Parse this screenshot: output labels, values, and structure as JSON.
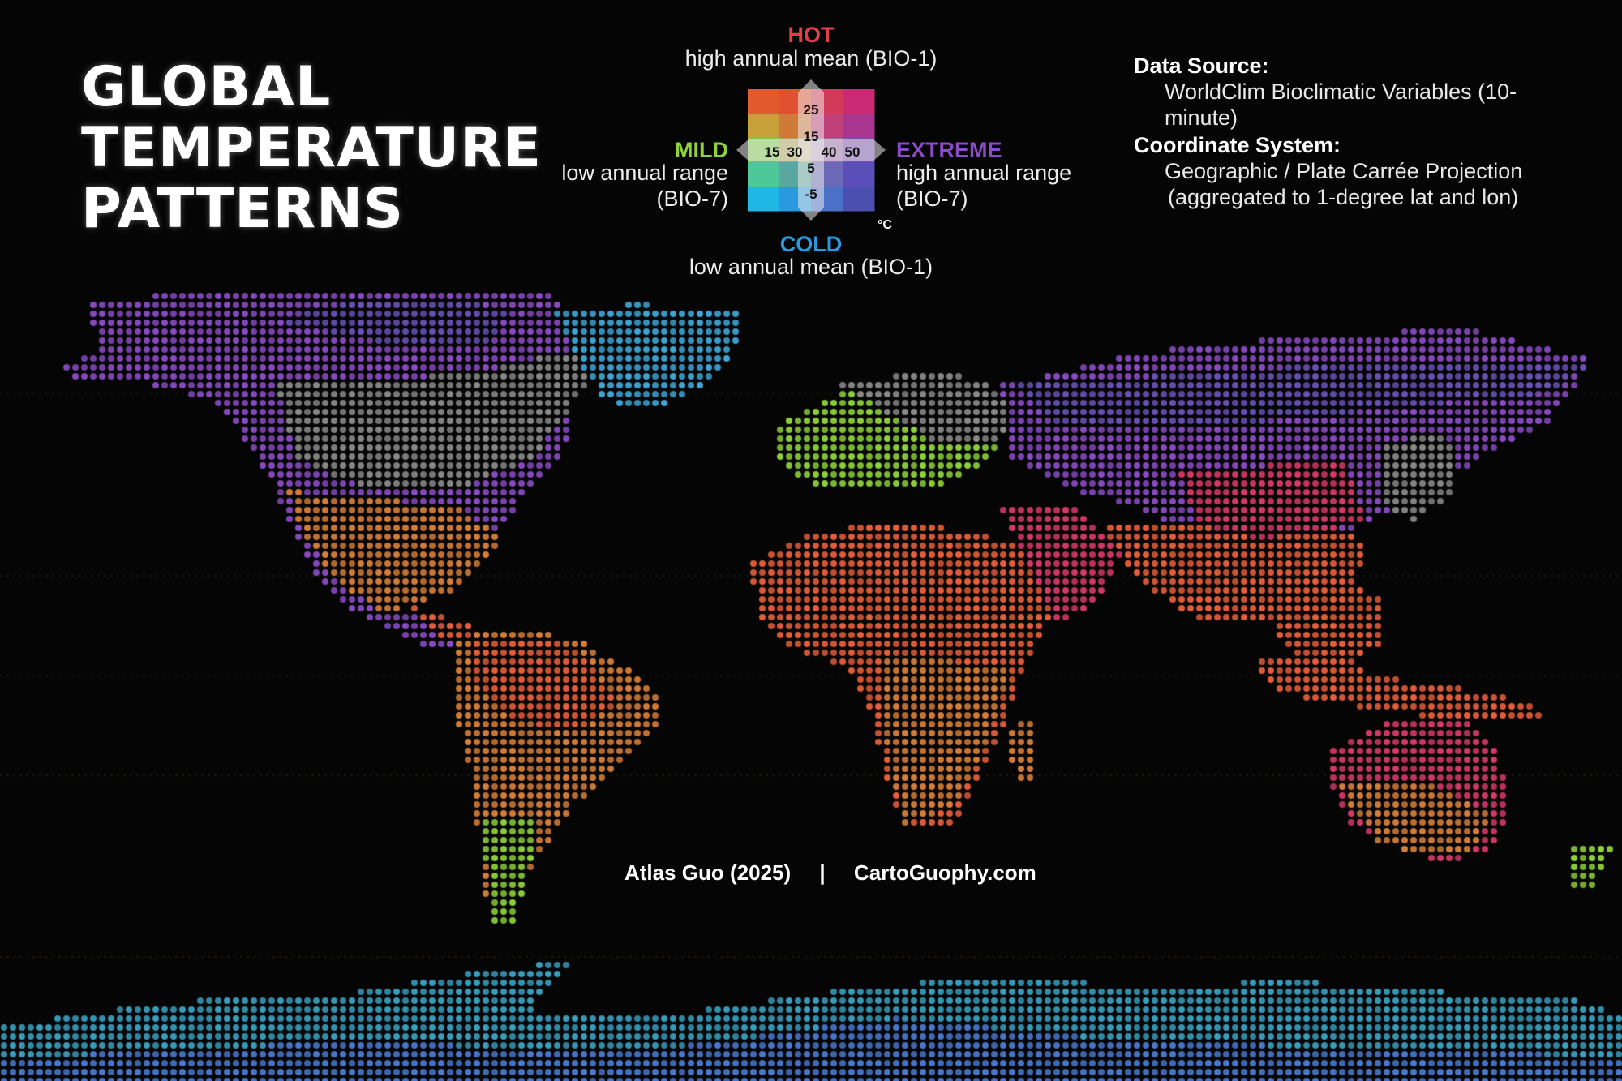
{
  "title_lines": [
    "GLOBAL",
    "TEMPERATURE",
    "PATTERNS"
  ],
  "legend": {
    "hot": {
      "label": "HOT",
      "desc": "high annual mean (BIO-1)",
      "color": "#e0404a"
    },
    "cold": {
      "label": "COLD",
      "desc": "low annual mean (BIO-1)",
      "color": "#2a9ae0"
    },
    "mild": {
      "label": "MILD",
      "desc_line1": "low annual range",
      "desc_line2": "(BIO-7)",
      "color": "#8fd23a"
    },
    "extreme": {
      "label": "EXTREME",
      "desc_line1": "high annual range",
      "desc_line2": "(BIO-7)",
      "color": "#8a4cc4"
    },
    "mean_ticks": [
      "25",
      "15",
      "5",
      "-5"
    ],
    "range_ticks": [
      "15",
      "30",
      "40",
      "50"
    ],
    "unit": "°C",
    "grid_colors": [
      [
        "#e05a2e",
        "#e2512f",
        "#d23a5a",
        "#c92a74"
      ],
      [
        "#c7a03a",
        "#d07a3a",
        "#c0407a",
        "#a8368e"
      ],
      [
        "#7fc74a",
        "#b0a45a",
        "#9a6aaa",
        "#7a4fb0"
      ],
      [
        "#4ec79a",
        "#5aa6a0",
        "#6a6ab8",
        "#5a4fb8"
      ],
      [
        "#1fb8e6",
        "#2a9ae0",
        "#4a70c8",
        "#4a4fb0"
      ]
    ]
  },
  "data_source": {
    "heading": "Data Source:",
    "value": "WorldClim Bioclimatic Variables  (10-minute)"
  },
  "coordinate_system": {
    "heading": "Coordinate System:",
    "line1": "Geographic / Plate Carrée Projection",
    "line2": "(aggregated to 1-degree lat and lon)"
  },
  "credits": {
    "author": "Atlas Guo (2025)",
    "separator": "|",
    "website": "CartoGuophy.com"
  },
  "palette": {
    "hot_mild": "#e8603a",
    "hot_extreme": "#d83a6a",
    "warm": "#d8803a",
    "mild": "#8fd23a",
    "mid": "#8a8a8a",
    "extreme": "#8a4cc4",
    "cold_extreme": "#6a52b8",
    "cold_mild": "#3fa8d8",
    "polar": "#3aa0c0",
    "icecap": "#4a7ad0"
  }
}
